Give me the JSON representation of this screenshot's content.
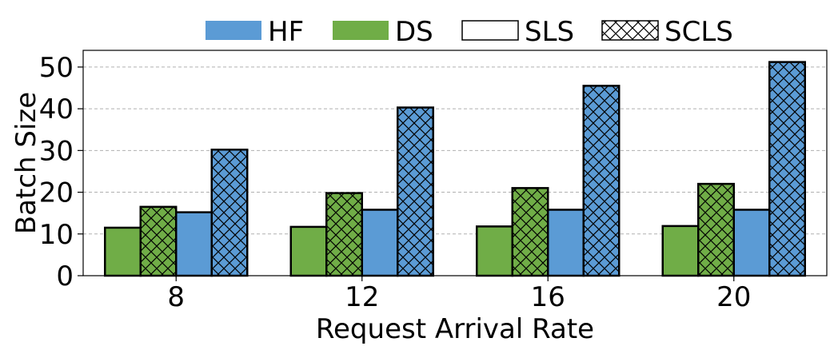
{
  "chart_data": {
    "type": "bar",
    "xlabel": "Request Arrival Rate",
    "ylabel": "Batch Size",
    "categories": [
      "8",
      "12",
      "16",
      "20"
    ],
    "ylim": [
      0,
      54
    ],
    "yticks": [
      0,
      10,
      20,
      30,
      40,
      50
    ],
    "grid": "y-dashed",
    "legend_position": "top",
    "legend": [
      {
        "label": "HF",
        "swatch": "solid",
        "color": "#5b9bd5"
      },
      {
        "label": "DS",
        "swatch": "solid",
        "color": "#70ad47"
      },
      {
        "label": "SLS",
        "swatch": "plain",
        "color": "#ffffff"
      },
      {
        "label": "SCLS",
        "swatch": "crosshatch",
        "color": "#ffffff"
      }
    ],
    "series": [
      {
        "name": "DS + SLS",
        "color": "#70ad47",
        "hatch": false,
        "values": [
          11.5,
          11.7,
          11.8,
          11.9
        ]
      },
      {
        "name": "DS + SCLS",
        "color": "#70ad47",
        "hatch": true,
        "values": [
          16.5,
          19.8,
          21.0,
          22.0
        ]
      },
      {
        "name": "HF + SLS",
        "color": "#5b9bd5",
        "hatch": false,
        "values": [
          15.2,
          15.8,
          15.8,
          15.8
        ]
      },
      {
        "name": "HF + SCLS",
        "color": "#5b9bd5",
        "hatch": true,
        "values": [
          30.2,
          40.3,
          45.5,
          51.2
        ]
      }
    ]
  }
}
